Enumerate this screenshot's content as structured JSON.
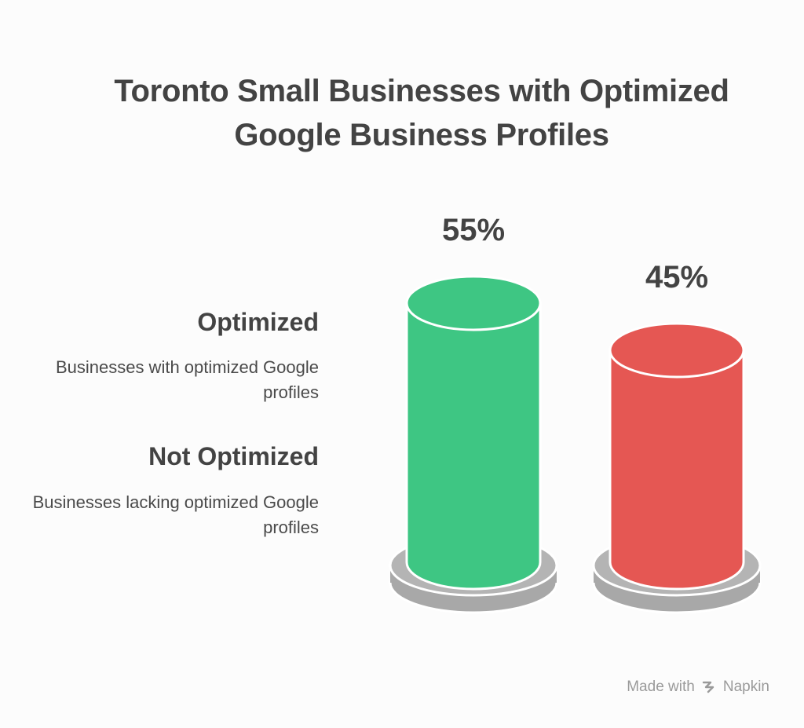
{
  "title_lines": [
    "Toronto Small Businesses with Optimized",
    "Google Business Profiles"
  ],
  "legend": [
    {
      "heading": "Optimized",
      "description": "Businesses with optimized Google profiles",
      "color": "#3ec683"
    },
    {
      "heading": "Not Optimized",
      "description": "Businesses lacking optimized Google profiles",
      "color": "#e55753"
    }
  ],
  "footer": {
    "made_with": "Made with",
    "brand": "Napkin",
    "icon": "napkin-logo-icon"
  },
  "chart_data": {
    "type": "bar",
    "title": "Toronto Small Businesses with Optimized Google Business Profiles",
    "categories": [
      "Optimized",
      "Not Optimized"
    ],
    "values": [
      55,
      45
    ],
    "value_labels": [
      "55%",
      "45%"
    ],
    "colors": [
      "#3ec683",
      "#e55753"
    ],
    "base_color": "#a8a8a8",
    "ylim": [
      0,
      100
    ],
    "unit": "%",
    "grid": false,
    "legend_placement": "left"
  }
}
